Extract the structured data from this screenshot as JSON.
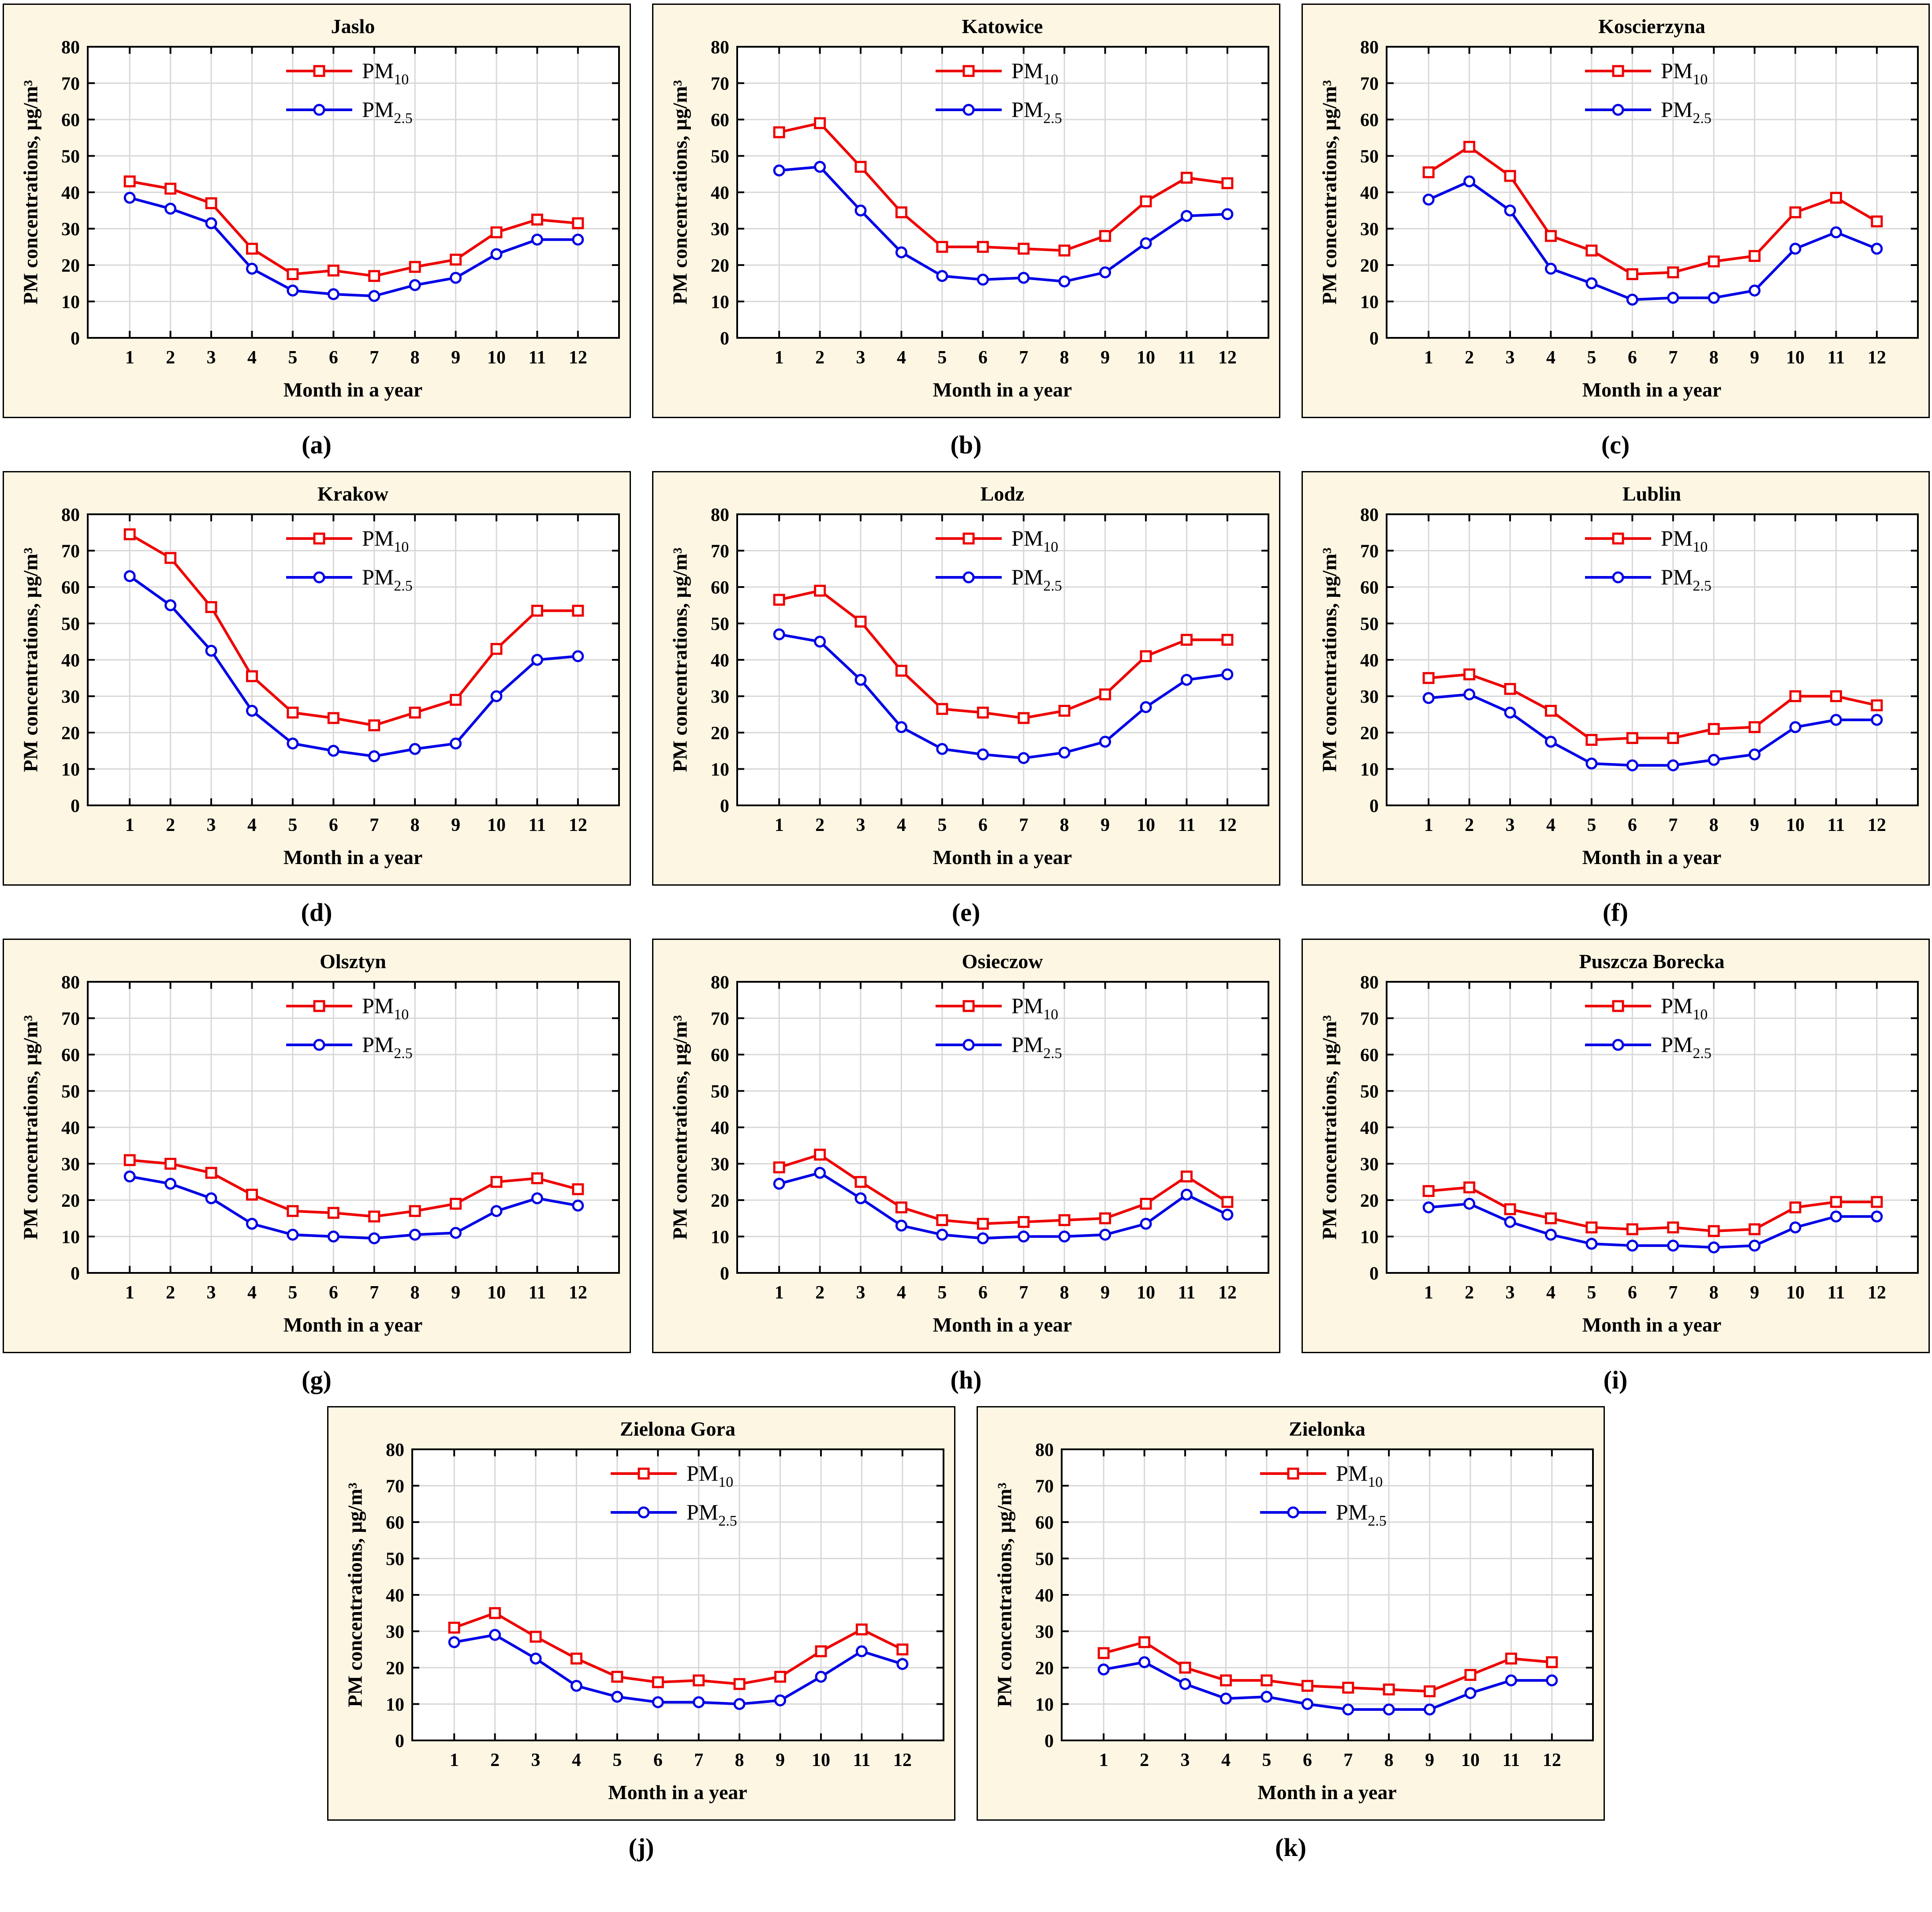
{
  "figure": {
    "y_label": "PM concentrations, µg/m³",
    "x_label": "Month in a year",
    "legend": [
      {
        "series": "pm10",
        "main": "PM",
        "sub": "10"
      },
      {
        "series": "pm25",
        "main": "PM",
        "sub": "2.5"
      }
    ],
    "colors": {
      "pm10": "#ee0000",
      "pm25": "#0000e6",
      "grid": "#d8d8d8",
      "axis": "#000000",
      "panel_bg": "#fdf6e3",
      "plot_bg": "#ffffff"
    },
    "ylim": [
      0,
      80
    ],
    "y_ticks": [
      0,
      10,
      20,
      30,
      40,
      50,
      60,
      70,
      80
    ],
    "x_ticks": [
      1,
      2,
      3,
      4,
      5,
      6,
      7,
      8,
      9,
      10,
      11,
      12
    ],
    "grid_on": true,
    "legend_position": "top-center-inside"
  },
  "chart_data": [
    {
      "id": "a",
      "type": "line",
      "title": "Jaslo",
      "label": "(a)",
      "x": [
        1,
        2,
        3,
        4,
        5,
        6,
        7,
        8,
        9,
        10,
        11,
        12
      ],
      "series": [
        {
          "name": "PM10",
          "values": [
            43,
            41,
            37,
            24.5,
            17.5,
            18.5,
            17,
            19.5,
            21.5,
            29,
            32.5,
            31.5
          ]
        },
        {
          "name": "PM2.5",
          "values": [
            38.5,
            35.5,
            31.5,
            19,
            13,
            12,
            11.5,
            14.5,
            16.5,
            23,
            27,
            27
          ]
        }
      ]
    },
    {
      "id": "b",
      "type": "line",
      "title": "Katowice",
      "label": "(b)",
      "x": [
        1,
        2,
        3,
        4,
        5,
        6,
        7,
        8,
        9,
        10,
        11,
        12
      ],
      "series": [
        {
          "name": "PM10",
          "values": [
            56.5,
            59,
            47,
            34.5,
            25,
            25,
            24.5,
            24,
            28,
            37.5,
            44,
            42.5
          ]
        },
        {
          "name": "PM2.5",
          "values": [
            46,
            47,
            35,
            23.5,
            17,
            16,
            16.5,
            15.5,
            18,
            26,
            33.5,
            34
          ]
        }
      ]
    },
    {
      "id": "c",
      "type": "line",
      "title": "Koscierzyna",
      "label": "(c)",
      "x": [
        1,
        2,
        3,
        4,
        5,
        6,
        7,
        8,
        9,
        10,
        11,
        12
      ],
      "series": [
        {
          "name": "PM10",
          "values": [
            45.5,
            52.5,
            44.5,
            28,
            24,
            17.5,
            18,
            21,
            22.5,
            34.5,
            38.5,
            32
          ]
        },
        {
          "name": "PM2.5",
          "values": [
            38,
            43,
            35,
            19,
            15,
            10.5,
            11,
            11,
            13,
            24.5,
            29,
            24.5
          ]
        }
      ]
    },
    {
      "id": "d",
      "type": "line",
      "title": "Krakow",
      "label": "(d)",
      "x": [
        1,
        2,
        3,
        4,
        5,
        6,
        7,
        8,
        9,
        10,
        11,
        12
      ],
      "series": [
        {
          "name": "PM10",
          "values": [
            74.5,
            68,
            54.5,
            35.5,
            25.5,
            24,
            22,
            25.5,
            29,
            43,
            53.5,
            53.5
          ]
        },
        {
          "name": "PM2.5",
          "values": [
            63,
            55,
            42.5,
            26,
            17,
            15,
            13.5,
            15.5,
            17,
            30,
            40,
            41
          ]
        }
      ]
    },
    {
      "id": "e",
      "type": "line",
      "title": "Lodz",
      "label": "(e)",
      "x": [
        1,
        2,
        3,
        4,
        5,
        6,
        7,
        8,
        9,
        10,
        11,
        12
      ],
      "series": [
        {
          "name": "PM10",
          "values": [
            56.5,
            59,
            50.5,
            37,
            26.5,
            25.5,
            24,
            26,
            30.5,
            41,
            45.5,
            45.5
          ]
        },
        {
          "name": "PM2.5",
          "values": [
            47,
            45,
            34.5,
            21.5,
            15.5,
            14,
            13,
            14.5,
            17.5,
            27,
            34.5,
            36
          ]
        }
      ]
    },
    {
      "id": "f",
      "type": "line",
      "title": "Lublin",
      "label": "(f)",
      "x": [
        1,
        2,
        3,
        4,
        5,
        6,
        7,
        8,
        9,
        10,
        11,
        12
      ],
      "series": [
        {
          "name": "PM10",
          "values": [
            35,
            36,
            32,
            26,
            18,
            18.5,
            18.5,
            21,
            21.5,
            30,
            30,
            27.5
          ]
        },
        {
          "name": "PM2.5",
          "values": [
            29.5,
            30.5,
            25.5,
            17.5,
            11.5,
            11,
            11,
            12.5,
            14,
            21.5,
            23.5,
            23.5
          ]
        }
      ]
    },
    {
      "id": "g",
      "type": "line",
      "title": "Olsztyn",
      "label": "(g)",
      "x": [
        1,
        2,
        3,
        4,
        5,
        6,
        7,
        8,
        9,
        10,
        11,
        12
      ],
      "series": [
        {
          "name": "PM10",
          "values": [
            31,
            30,
            27.5,
            21.5,
            17,
            16.5,
            15.5,
            17,
            19,
            25,
            26,
            23
          ]
        },
        {
          "name": "PM2.5",
          "values": [
            26.5,
            24.5,
            20.5,
            13.5,
            10.5,
            10,
            9.5,
            10.5,
            11,
            17,
            20.5,
            18.5
          ]
        }
      ]
    },
    {
      "id": "h",
      "type": "line",
      "title": "Osieczow",
      "label": "(h)",
      "x": [
        1,
        2,
        3,
        4,
        5,
        6,
        7,
        8,
        9,
        10,
        11,
        12
      ],
      "series": [
        {
          "name": "PM10",
          "values": [
            29,
            32.5,
            25,
            18,
            14.5,
            13.5,
            14,
            14.5,
            15,
            19,
            26.5,
            19.5
          ]
        },
        {
          "name": "PM2.5",
          "values": [
            24.5,
            27.5,
            20.5,
            13,
            10.5,
            9.5,
            10,
            10,
            10.5,
            13.5,
            21.5,
            16
          ]
        }
      ]
    },
    {
      "id": "i",
      "type": "line",
      "title": "Puszcza Borecka",
      "label": "(i)",
      "x": [
        1,
        2,
        3,
        4,
        5,
        6,
        7,
        8,
        9,
        10,
        11,
        12
      ],
      "series": [
        {
          "name": "PM10",
          "values": [
            22.5,
            23.5,
            17.5,
            15,
            12.5,
            12,
            12.5,
            11.5,
            12,
            18,
            19.5,
            19.5
          ]
        },
        {
          "name": "PM2.5",
          "values": [
            18,
            19,
            14,
            10.5,
            8,
            7.5,
            7.5,
            7,
            7.5,
            12.5,
            15.5,
            15.5
          ]
        }
      ]
    },
    {
      "id": "j",
      "type": "line",
      "title": "Zielona Gora",
      "label": "(j)",
      "x": [
        1,
        2,
        3,
        4,
        5,
        6,
        7,
        8,
        9,
        10,
        11,
        12
      ],
      "series": [
        {
          "name": "PM10",
          "values": [
            31,
            35,
            28.5,
            22.5,
            17.5,
            16,
            16.5,
            15.5,
            17.5,
            24.5,
            30.5,
            25
          ]
        },
        {
          "name": "PM2.5",
          "values": [
            27,
            29,
            22.5,
            15,
            12,
            10.5,
            10.5,
            10,
            11,
            17.5,
            24.5,
            21
          ]
        }
      ]
    },
    {
      "id": "k",
      "type": "line",
      "title": "Zielonka",
      "label": "(k)",
      "x": [
        1,
        2,
        3,
        4,
        5,
        6,
        7,
        8,
        9,
        10,
        11,
        12
      ],
      "series": [
        {
          "name": "PM10",
          "values": [
            24,
            27,
            20,
            16.5,
            16.5,
            15,
            14.5,
            14,
            13.5,
            18,
            22.5,
            21.5
          ]
        },
        {
          "name": "PM2.5",
          "values": [
            19.5,
            21.5,
            15.5,
            11.5,
            12,
            10,
            8.5,
            8.5,
            8.5,
            13,
            16.5,
            16.5
          ]
        }
      ]
    }
  ],
  "layout_rows": [
    [
      "a",
      "b",
      "c"
    ],
    [
      "d",
      "e",
      "f"
    ],
    [
      "g",
      "h",
      "i"
    ],
    [
      "j",
      "k"
    ]
  ]
}
